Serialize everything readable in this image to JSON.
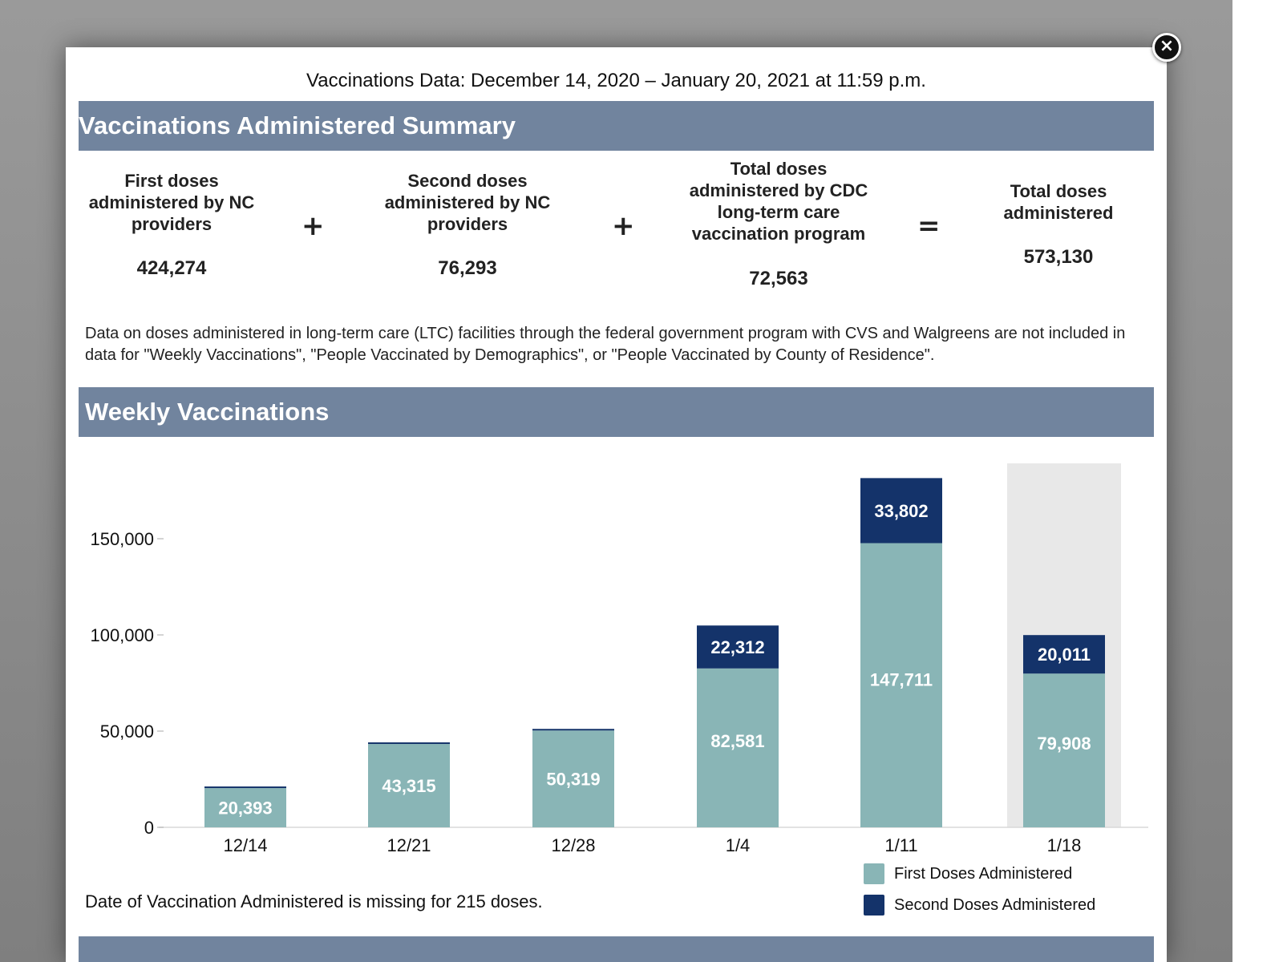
{
  "header": {
    "data_date": "Vaccinations Data: December 14, 2020 – January 20, 2021 at 11:59 p.m."
  },
  "summary": {
    "title": "Vaccinations Administered Summary",
    "first_doses_label": "First doses administered by NC providers",
    "first_doses_value": "424,274",
    "plus_1": "+",
    "second_doses_label": "Second doses administered by NC providers",
    "second_doses_value": "76,293",
    "plus_2": "+",
    "ltc_label": "Total doses administered by CDC long-term care vaccination program",
    "ltc_value": "72,563",
    "equals": "=",
    "total_label": "Total doses administered",
    "total_value": "573,130",
    "note": "Data on doses administered in long-term care (LTC) facilities through the federal government program with CVS and Walgreens are not included in data for \"Weekly Vaccinations\", \"People Vaccinated by Demographics\", or \"People Vaccinated by County of Residence\"."
  },
  "weekly": {
    "title": "Weekly Vaccinations",
    "missing_note": "Date of Vaccination Administered is missing for 215 doses."
  },
  "colors": {
    "band": "#71849e",
    "first": "#89b5b6",
    "second": "#14336a",
    "highlight": "#e8e8e8"
  },
  "chart_data": {
    "type": "bar",
    "stacked": true,
    "categories": [
      "12/14",
      "12/21",
      "12/28",
      "1/4",
      "1/11",
      "1/18"
    ],
    "series": [
      {
        "name": "First Doses Administered",
        "values": [
          20393,
          43315,
          50319,
          82581,
          147711,
          79908
        ],
        "labels": [
          "20,393",
          "43,315",
          "50,319",
          "82,581",
          "147,711",
          "79,908"
        ]
      },
      {
        "name": "Second Doses Administered",
        "values": [
          0,
          0,
          0,
          22312,
          33802,
          20011
        ],
        "labels": [
          "",
          "",
          "",
          "22,312",
          "33,802",
          "20,011"
        ]
      }
    ],
    "y_ticks": [
      0,
      50000,
      100000,
      150000
    ],
    "y_tick_labels": [
      "0",
      "50,000",
      "100,000",
      "150,000"
    ],
    "ylim": [
      0,
      190000
    ],
    "highlighted_category": "1/18",
    "legend_position": "bottom-right",
    "grid": false
  }
}
